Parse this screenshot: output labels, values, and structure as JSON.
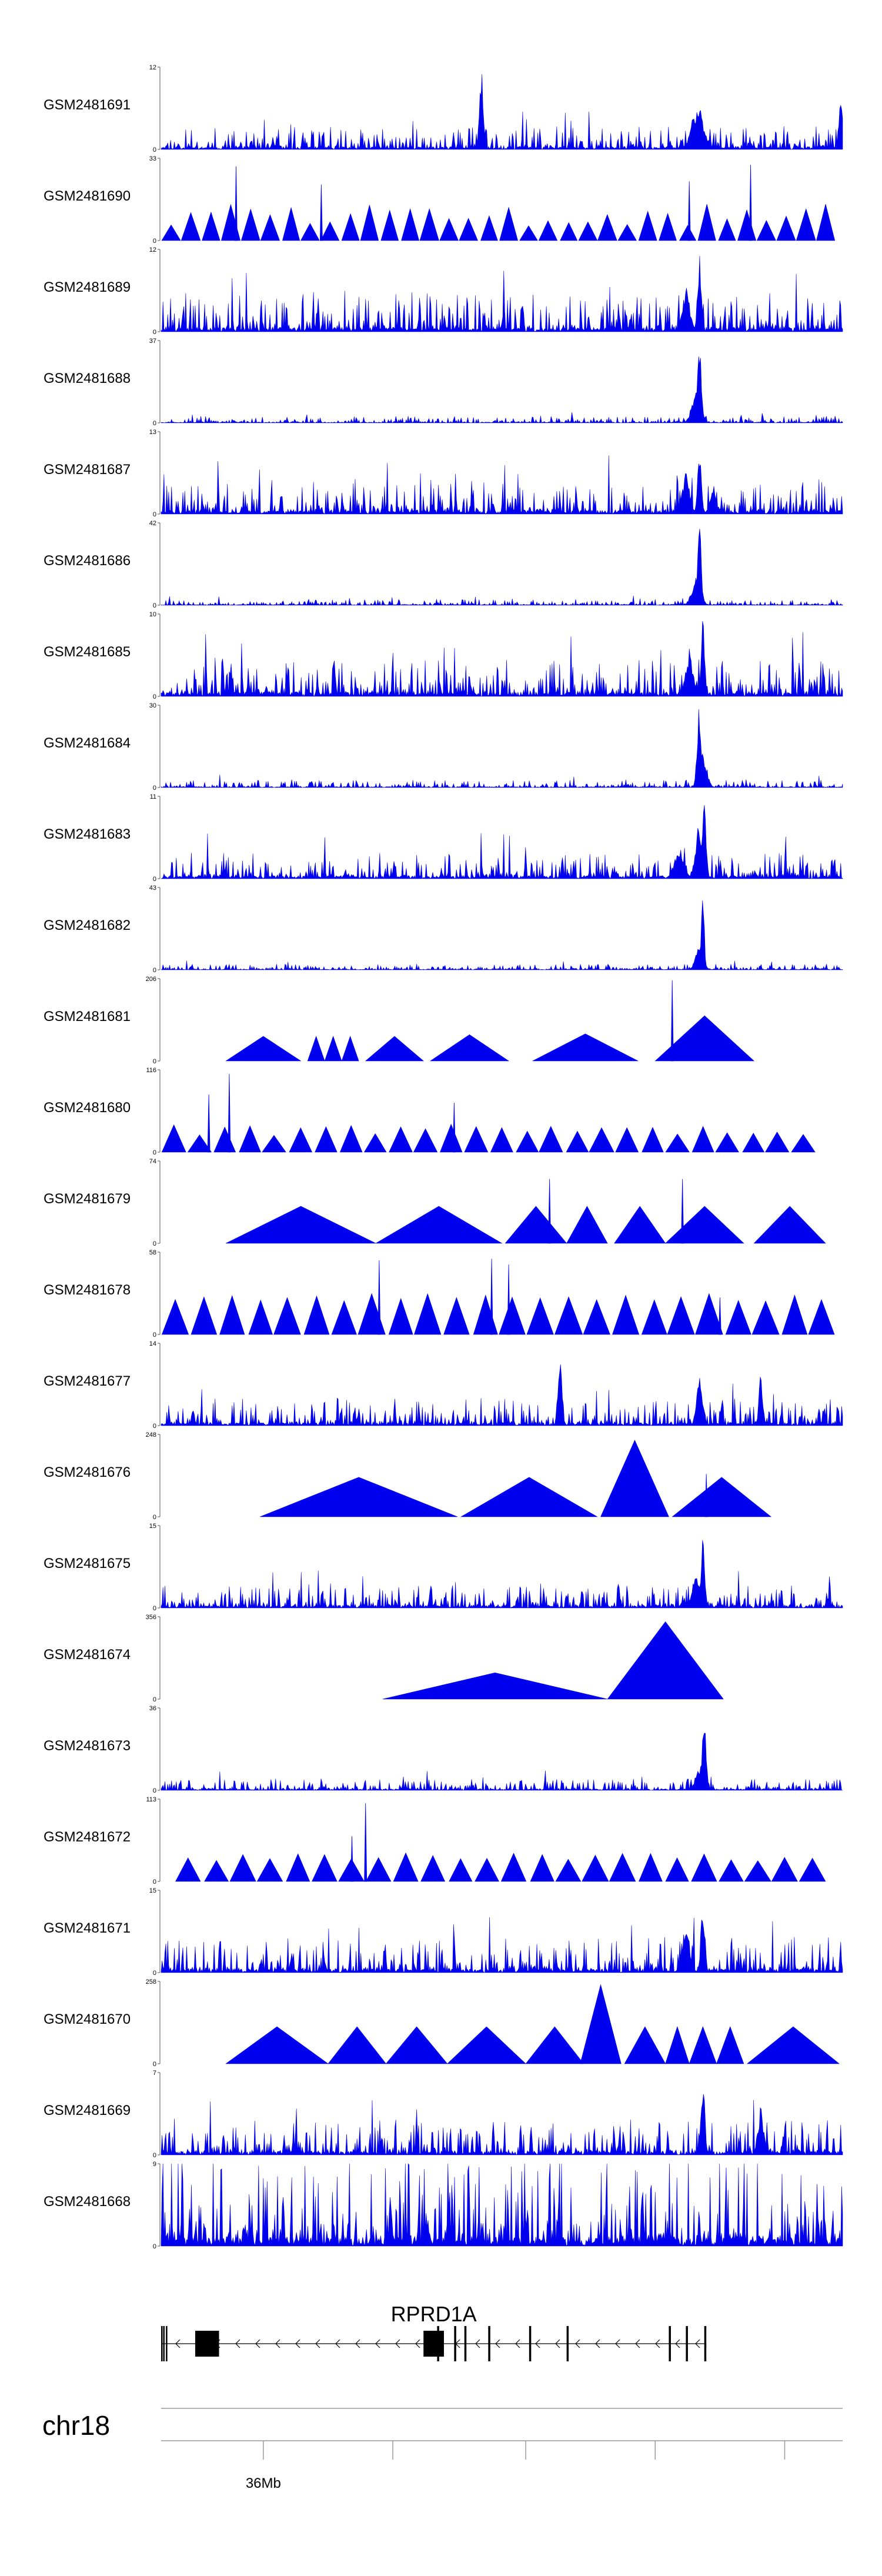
{
  "chart_data": {
    "type": "area",
    "series_color": "#0000ee",
    "tracks": [
      {
        "label": "GSM2481691",
        "ymax": 12,
        "ymin": 0,
        "style": "dense",
        "seed": 11,
        "baseline": 0.12,
        "peaks": [
          [
            0.47,
            0.98,
            0.004
          ],
          [
            0.787,
            0.55,
            0.012
          ],
          [
            0.998,
            0.62,
            0.005
          ]
        ]
      },
      {
        "label": "GSM2481690",
        "ymax": 33,
        "ymin": 0,
        "style": "triangles",
        "seed": 12,
        "count": 34,
        "hmin": 0.18,
        "hmax": 0.45,
        "start": 0.0,
        "end": 0.99,
        "spikes": [
          [
            0.11,
            0.9
          ],
          [
            0.235,
            0.68
          ],
          [
            0.775,
            0.72
          ],
          [
            0.865,
            0.92
          ]
        ]
      },
      {
        "label": "GSM2481689",
        "ymax": 12,
        "ymin": 0,
        "style": "dense",
        "seed": 13,
        "baseline": 0.2,
        "peaks": [
          [
            0.79,
            0.96,
            0.004
          ],
          [
            0.77,
            0.55,
            0.008
          ]
        ]
      },
      {
        "label": "GSM2481688",
        "ymax": 37,
        "ymin": 0,
        "style": "dense",
        "seed": 14,
        "baseline": 0.035,
        "peaks": [
          [
            0.79,
            0.97,
            0.004
          ],
          [
            0.785,
            0.4,
            0.009
          ]
        ]
      },
      {
        "label": "GSM2481687",
        "ymax": 13,
        "ymin": 0,
        "style": "dense",
        "seed": 15,
        "baseline": 0.18,
        "peaks": [
          [
            0.79,
            0.95,
            0.004
          ],
          [
            0.77,
            0.5,
            0.008
          ],
          [
            0.81,
            0.4,
            0.006
          ]
        ]
      },
      {
        "label": "GSM2481686",
        "ymax": 42,
        "ymin": 0,
        "style": "dense",
        "seed": 16,
        "baseline": 0.03,
        "peaks": [
          [
            0.79,
            0.96,
            0.004
          ],
          [
            0.785,
            0.35,
            0.009
          ]
        ]
      },
      {
        "label": "GSM2481685",
        "ymax": 10,
        "ymin": 0,
        "style": "dense",
        "seed": 17,
        "baseline": 0.2,
        "peaks": [
          [
            0.795,
            0.95,
            0.004
          ],
          [
            0.775,
            0.52,
            0.008
          ]
        ]
      },
      {
        "label": "GSM2481684",
        "ymax": 30,
        "ymin": 0,
        "style": "dense",
        "seed": 18,
        "baseline": 0.04,
        "peaks": [
          [
            0.789,
            0.96,
            0.004
          ],
          [
            0.795,
            0.42,
            0.008
          ]
        ]
      },
      {
        "label": "GSM2481683",
        "ymax": 11,
        "ymin": 0,
        "style": "dense",
        "seed": 19,
        "baseline": 0.14,
        "peaks": [
          [
            0.797,
            0.95,
            0.004
          ],
          [
            0.79,
            0.7,
            0.008
          ],
          [
            0.76,
            0.38,
            0.01
          ]
        ]
      },
      {
        "label": "GSM2481682",
        "ymax": 43,
        "ymin": 0,
        "style": "dense",
        "seed": 20,
        "baseline": 0.03,
        "peaks": [
          [
            0.795,
            0.96,
            0.003
          ],
          [
            0.79,
            0.3,
            0.008
          ]
        ]
      },
      {
        "label": "GSM2481681",
        "ymax": 206,
        "ymin": 0,
        "style": "explicit",
        "triangles": [
          [
            0.095,
            0.205,
            0.3
          ],
          [
            0.215,
            0.24,
            0.3
          ],
          [
            0.24,
            0.265,
            0.3
          ],
          [
            0.265,
            0.29,
            0.3
          ],
          [
            0.3,
            0.385,
            0.3
          ],
          [
            0.395,
            0.51,
            0.32
          ],
          [
            0.545,
            0.7,
            0.33
          ],
          [
            0.725,
            0.87,
            0.55
          ]
        ],
        "spikes": [
          [
            0.75,
            0.98
          ]
        ]
      },
      {
        "label": "GSM2481680",
        "ymax": 116,
        "ymin": 0,
        "style": "triangles",
        "seed": 22,
        "count": 26,
        "hmin": 0.2,
        "hmax": 0.35,
        "start": 0.0,
        "end": 0.96,
        "spikes": [
          [
            0.07,
            0.7
          ],
          [
            0.1,
            0.95
          ],
          [
            0.43,
            0.6
          ]
        ]
      },
      {
        "label": "GSM2481679",
        "ymax": 74,
        "ymin": 0,
        "style": "explicit",
        "triangles": [
          [
            0.095,
            0.315,
            0.45
          ],
          [
            0.315,
            0.5,
            0.45
          ],
          [
            0.505,
            0.595,
            0.45
          ],
          [
            0.595,
            0.655,
            0.45
          ],
          [
            0.665,
            0.74,
            0.45
          ],
          [
            0.74,
            0.855,
            0.45
          ],
          [
            0.87,
            0.975,
            0.45
          ]
        ],
        "spikes": [
          [
            0.57,
            0.78
          ],
          [
            0.765,
            0.78
          ]
        ]
      },
      {
        "label": "GSM2481678",
        "ymax": 58,
        "ymin": 0,
        "style": "triangles",
        "seed": 24,
        "count": 24,
        "hmin": 0.4,
        "hmax": 0.5,
        "start": 0.0,
        "end": 0.99,
        "spikes": [
          [
            0.32,
            0.9
          ],
          [
            0.485,
            0.92
          ],
          [
            0.51,
            0.85
          ],
          [
            0.82,
            0.45
          ]
        ]
      },
      {
        "label": "GSM2481677",
        "ymax": 14,
        "ymin": 0,
        "style": "dense",
        "seed": 25,
        "baseline": 0.14,
        "peaks": [
          [
            0.585,
            0.92,
            0.004
          ],
          [
            0.79,
            0.6,
            0.006
          ],
          [
            0.88,
            0.7,
            0.004
          ]
        ]
      },
      {
        "label": "GSM2481676",
        "ymax": 248,
        "ymin": 0,
        "style": "explicit",
        "triangles": [
          [
            0.145,
            0.435,
            0.48
          ],
          [
            0.44,
            0.64,
            0.48
          ],
          [
            0.645,
            0.745,
            0.93
          ],
          [
            0.75,
            0.895,
            0.48
          ]
        ],
        "spikes": [
          [
            0.8,
            0.52
          ]
        ]
      },
      {
        "label": "GSM2481675",
        "ymax": 15,
        "ymin": 0,
        "style": "dense",
        "seed": 27,
        "baseline": 0.12,
        "peaks": [
          [
            0.795,
            0.95,
            0.004
          ],
          [
            0.785,
            0.45,
            0.008
          ]
        ]
      },
      {
        "label": "GSM2481674",
        "ymax": 356,
        "ymin": 0,
        "style": "explicit",
        "triangles": [
          [
            0.325,
            0.655,
            0.32
          ],
          [
            0.655,
            0.825,
            0.94
          ]
        ],
        "spikes": []
      },
      {
        "label": "GSM2481673",
        "ymax": 36,
        "ymin": 0,
        "style": "dense",
        "seed": 29,
        "baseline": 0.06,
        "peaks": [
          [
            0.797,
            0.95,
            0.004
          ],
          [
            0.79,
            0.32,
            0.008
          ]
        ]
      },
      {
        "label": "GSM2481672",
        "ymax": 113,
        "ymin": 0,
        "style": "triangles",
        "seed": 30,
        "count": 24,
        "hmin": 0.25,
        "hmax": 0.35,
        "start": 0.02,
        "end": 0.975,
        "spikes": [
          [
            0.3,
            0.95
          ],
          [
            0.28,
            0.55
          ]
        ]
      },
      {
        "label": "GSM2481671",
        "ymax": 15,
        "ymin": 0,
        "style": "dense",
        "seed": 31,
        "baseline": 0.18,
        "peaks": [
          [
            0.795,
            0.95,
            0.004
          ],
          [
            0.77,
            0.6,
            0.008
          ]
        ]
      },
      {
        "label": "GSM2481670",
        "ymax": 258,
        "ymin": 0,
        "style": "explicit",
        "triangles": [
          [
            0.095,
            0.245,
            0.45
          ],
          [
            0.245,
            0.33,
            0.45
          ],
          [
            0.33,
            0.42,
            0.45
          ],
          [
            0.42,
            0.535,
            0.45
          ],
          [
            0.535,
            0.62,
            0.45
          ],
          [
            0.615,
            0.675,
            0.96
          ],
          [
            0.68,
            0.74,
            0.45
          ],
          [
            0.74,
            0.775,
            0.45
          ],
          [
            0.775,
            0.815,
            0.45
          ],
          [
            0.815,
            0.855,
            0.45
          ],
          [
            0.86,
            0.995,
            0.45
          ]
        ],
        "spikes": []
      },
      {
        "label": "GSM2481669",
        "ymax": 7,
        "ymin": 0,
        "style": "dense",
        "seed": 33,
        "baseline": 0.18,
        "peaks": [
          [
            0.795,
            0.95,
            0.004
          ],
          [
            0.88,
            0.6,
            0.006
          ]
        ]
      },
      {
        "label": "GSM2481668",
        "ymax": 9,
        "ymin": 0,
        "style": "dense",
        "seed": 34,
        "baseline": 0.45,
        "peaks": []
      }
    ],
    "gene": {
      "name": "RPRD1A",
      "strand": "-",
      "exons": [
        [
          0.0,
          0.002
        ],
        [
          0.003,
          0.005
        ],
        [
          0.007,
          0.009
        ],
        [
          0.05,
          0.085
        ],
        [
          0.385,
          0.415
        ],
        [
          0.405,
          0.408
        ],
        [
          0.43,
          0.433
        ],
        [
          0.445,
          0.448
        ],
        [
          0.48,
          0.483
        ],
        [
          0.54,
          0.543
        ],
        [
          0.595,
          0.598
        ],
        [
          0.745,
          0.748
        ],
        [
          0.77,
          0.773
        ],
        [
          0.797,
          0.8
        ]
      ],
      "start": 0.0,
      "end": 0.8
    },
    "ideogram": {
      "chromosome": "chr18",
      "tick_positions": [
        0.15,
        0.34,
        0.535,
        0.725,
        0.915
      ],
      "tick_labels": [
        "36Mb",
        "",
        "",
        "",
        ""
      ]
    }
  }
}
